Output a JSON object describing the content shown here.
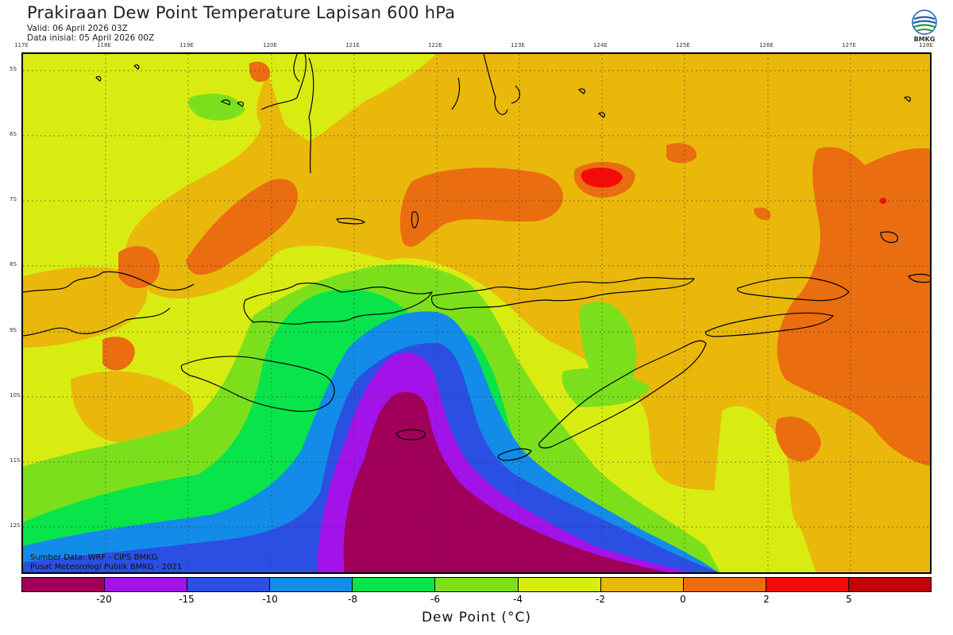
{
  "header": {
    "title": "Prakiraan Dew Point Temperature Lapisan 600 hPa",
    "valid": "Valid: 06 April 2026 03Z",
    "init": "Data inisial: 05 April 2026 00Z"
  },
  "logo": {
    "text": "BMKG",
    "icon": "bmkg-logo-icon"
  },
  "axes": {
    "lon_labels": [
      "117E",
      "118E",
      "119E",
      "120E",
      "121E",
      "122E",
      "123E",
      "124E",
      "125E",
      "126E",
      "127E",
      "128E"
    ],
    "lat_labels": [
      "5S",
      "6S",
      "7S",
      "8S",
      "9S",
      "10S",
      "11S",
      "12S"
    ]
  },
  "credits": {
    "source": "Sumber Data: WRF - CIPS BMKG",
    "org": "Pusat Meteorologi Publik BMKG - 2021"
  },
  "colorbar": {
    "title": "Dew Point (°C)",
    "colors": [
      "#a0005a",
      "#a312e8",
      "#2b4fe3",
      "#128ce8",
      "#08e44a",
      "#7be01b",
      "#d9ec12",
      "#e9b80b",
      "#ea6d0f",
      "#f40c08",
      "#c10404"
    ],
    "labels": [
      "-20",
      "-15",
      "-10",
      "-8",
      "-6",
      "-4",
      "-2",
      "0",
      "2",
      "5"
    ]
  },
  "palette": {
    "deep_magenta": "#a0005a",
    "purple": "#a312e8",
    "blue": "#2b4fe3",
    "light_blue": "#128ce8",
    "green": "#08e44a",
    "lime": "#7be01b",
    "yellow": "#d9ec12",
    "amber": "#e9b80b",
    "orange": "#ea6d0f",
    "red": "#f40c08"
  }
}
